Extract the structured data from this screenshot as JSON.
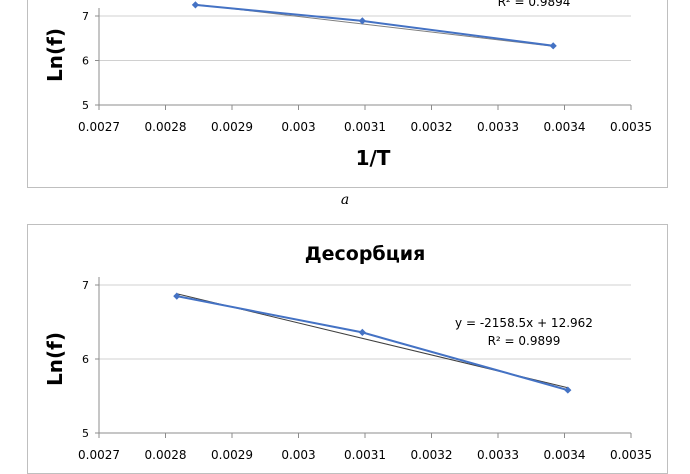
{
  "caption": "a",
  "chart_data": [
    {
      "type": "scatter",
      "title": "",
      "xlabel": "1/T",
      "ylabel": "Ln(f)",
      "xlim": [
        0.0027,
        0.0035
      ],
      "ylim": [
        5,
        7
      ],
      "x_ticks": [
        "0.0027",
        "0.0028",
        "0.0029",
        "0.003",
        "0.0031",
        "0.0032",
        "0.0033",
        "0.0034",
        "0.0035"
      ],
      "y_ticks": [
        "5",
        "6",
        "7"
      ],
      "grid": true,
      "series": [
        {
          "color": "#4472c4",
          "marker": "diamond",
          "line": true,
          "x": [
            0.002845,
            0.003096,
            0.003383
          ],
          "y": [
            7.25,
            6.89,
            6.33
          ]
        }
      ],
      "trendline": {
        "x": [
          0.002845,
          0.003383
        ],
        "y": [
          7.26,
          6.32
        ],
        "color": "#7f7f7f"
      },
      "annotation": [
        "R² = 0.9894"
      ]
    },
    {
      "type": "scatter",
      "title": "Десорбция",
      "xlabel": "",
      "ylabel": "Ln(f)",
      "xlim": [
        0.0027,
        0.0035
      ],
      "ylim": [
        5,
        7
      ],
      "x_ticks": [
        "0.0027",
        "0.0028",
        "0.0029",
        "0.003",
        "0.0031",
        "0.0032",
        "0.0033",
        "0.0034",
        "0.0035"
      ],
      "y_ticks": [
        "5",
        "6",
        "7"
      ],
      "grid": true,
      "series": [
        {
          "color": "#4472c4",
          "marker": "diamond",
          "line": true,
          "x": [
            0.002817,
            0.003096,
            0.003405
          ],
          "y": [
            6.85,
            6.36,
            5.58
          ]
        }
      ],
      "trendline": {
        "x": [
          0.002817,
          0.003405
        ],
        "y": [
          6.882,
          5.612
        ],
        "color": "#404040"
      },
      "annotation": [
        "y = -2158.5x + 12.962",
        "R² = 0.9899"
      ]
    }
  ]
}
